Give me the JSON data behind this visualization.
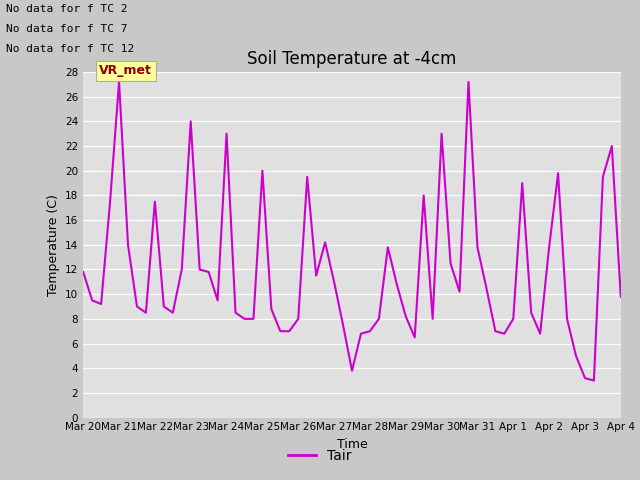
{
  "title": "Soil Temperature at -4cm",
  "xlabel": "Time",
  "ylabel": "Temperature (C)",
  "ylim": [
    0,
    28
  ],
  "yticks": [
    0,
    2,
    4,
    6,
    8,
    10,
    12,
    14,
    16,
    18,
    20,
    22,
    24,
    26,
    28
  ],
  "line_color": "#CC00CC",
  "line_width": 1.5,
  "legend_label": "Tair",
  "legend_line_color": "#CC00CC",
  "no_data_texts": [
    "No data for f TC 2",
    "No data for f TC 7",
    "No data for f TC 12"
  ],
  "vr_met_label": "VR_met",
  "fig_bg_color": "#C8C8C8",
  "plot_bg_color": "#E0E0E0",
  "x_tick_labels": [
    "Mar 20",
    "Mar 21",
    "Mar 22",
    "Mar 23",
    "Mar 24",
    "Mar 25",
    "Mar 26",
    "Mar 27",
    "Mar 28",
    "Mar 29",
    "Mar 30",
    "Mar 31",
    "Apr 1",
    "Apr 2",
    "Apr 3",
    "Apr 4"
  ],
  "time_data": [
    0,
    0.25,
    0.5,
    0.75,
    1.0,
    1.25,
    1.5,
    1.75,
    2.0,
    2.25,
    2.5,
    2.75,
    3.0,
    3.25,
    3.5,
    3.75,
    4.0,
    4.25,
    4.5,
    4.75,
    5.0,
    5.25,
    5.5,
    5.75,
    6.0,
    6.25,
    6.5,
    6.75,
    7.0,
    7.25,
    7.5,
    7.75,
    8.0,
    8.25,
    8.5,
    8.75,
    9.0,
    9.25,
    9.5,
    9.75,
    10.0,
    10.25,
    10.5,
    10.75,
    11.0,
    11.25,
    11.5,
    11.75,
    12.0,
    12.25,
    12.5,
    12.75,
    13.0,
    13.25,
    13.5,
    13.75,
    14.0,
    14.25,
    14.5,
    14.75,
    15.0
  ],
  "temp_data": [
    11.8,
    9.5,
    9.2,
    17.5,
    27.2,
    14.0,
    9.0,
    8.5,
    17.5,
    9.0,
    8.5,
    12.0,
    24.0,
    12.0,
    11.8,
    9.5,
    23.0,
    8.5,
    8.0,
    8.0,
    20.0,
    8.8,
    7.0,
    7.0,
    8.0,
    19.5,
    11.5,
    14.2,
    11.0,
    7.5,
    3.8,
    6.8,
    7.0,
    8.0,
    13.8,
    10.8,
    8.2,
    6.5,
    18.0,
    8.0,
    23.0,
    12.5,
    10.2,
    27.2,
    13.8,
    10.5,
    7.0,
    6.8,
    8.0,
    19.0,
    8.5,
    6.8,
    13.8,
    19.8,
    8.0,
    5.0,
    3.2,
    3.0,
    19.5,
    22.0,
    9.8
  ]
}
